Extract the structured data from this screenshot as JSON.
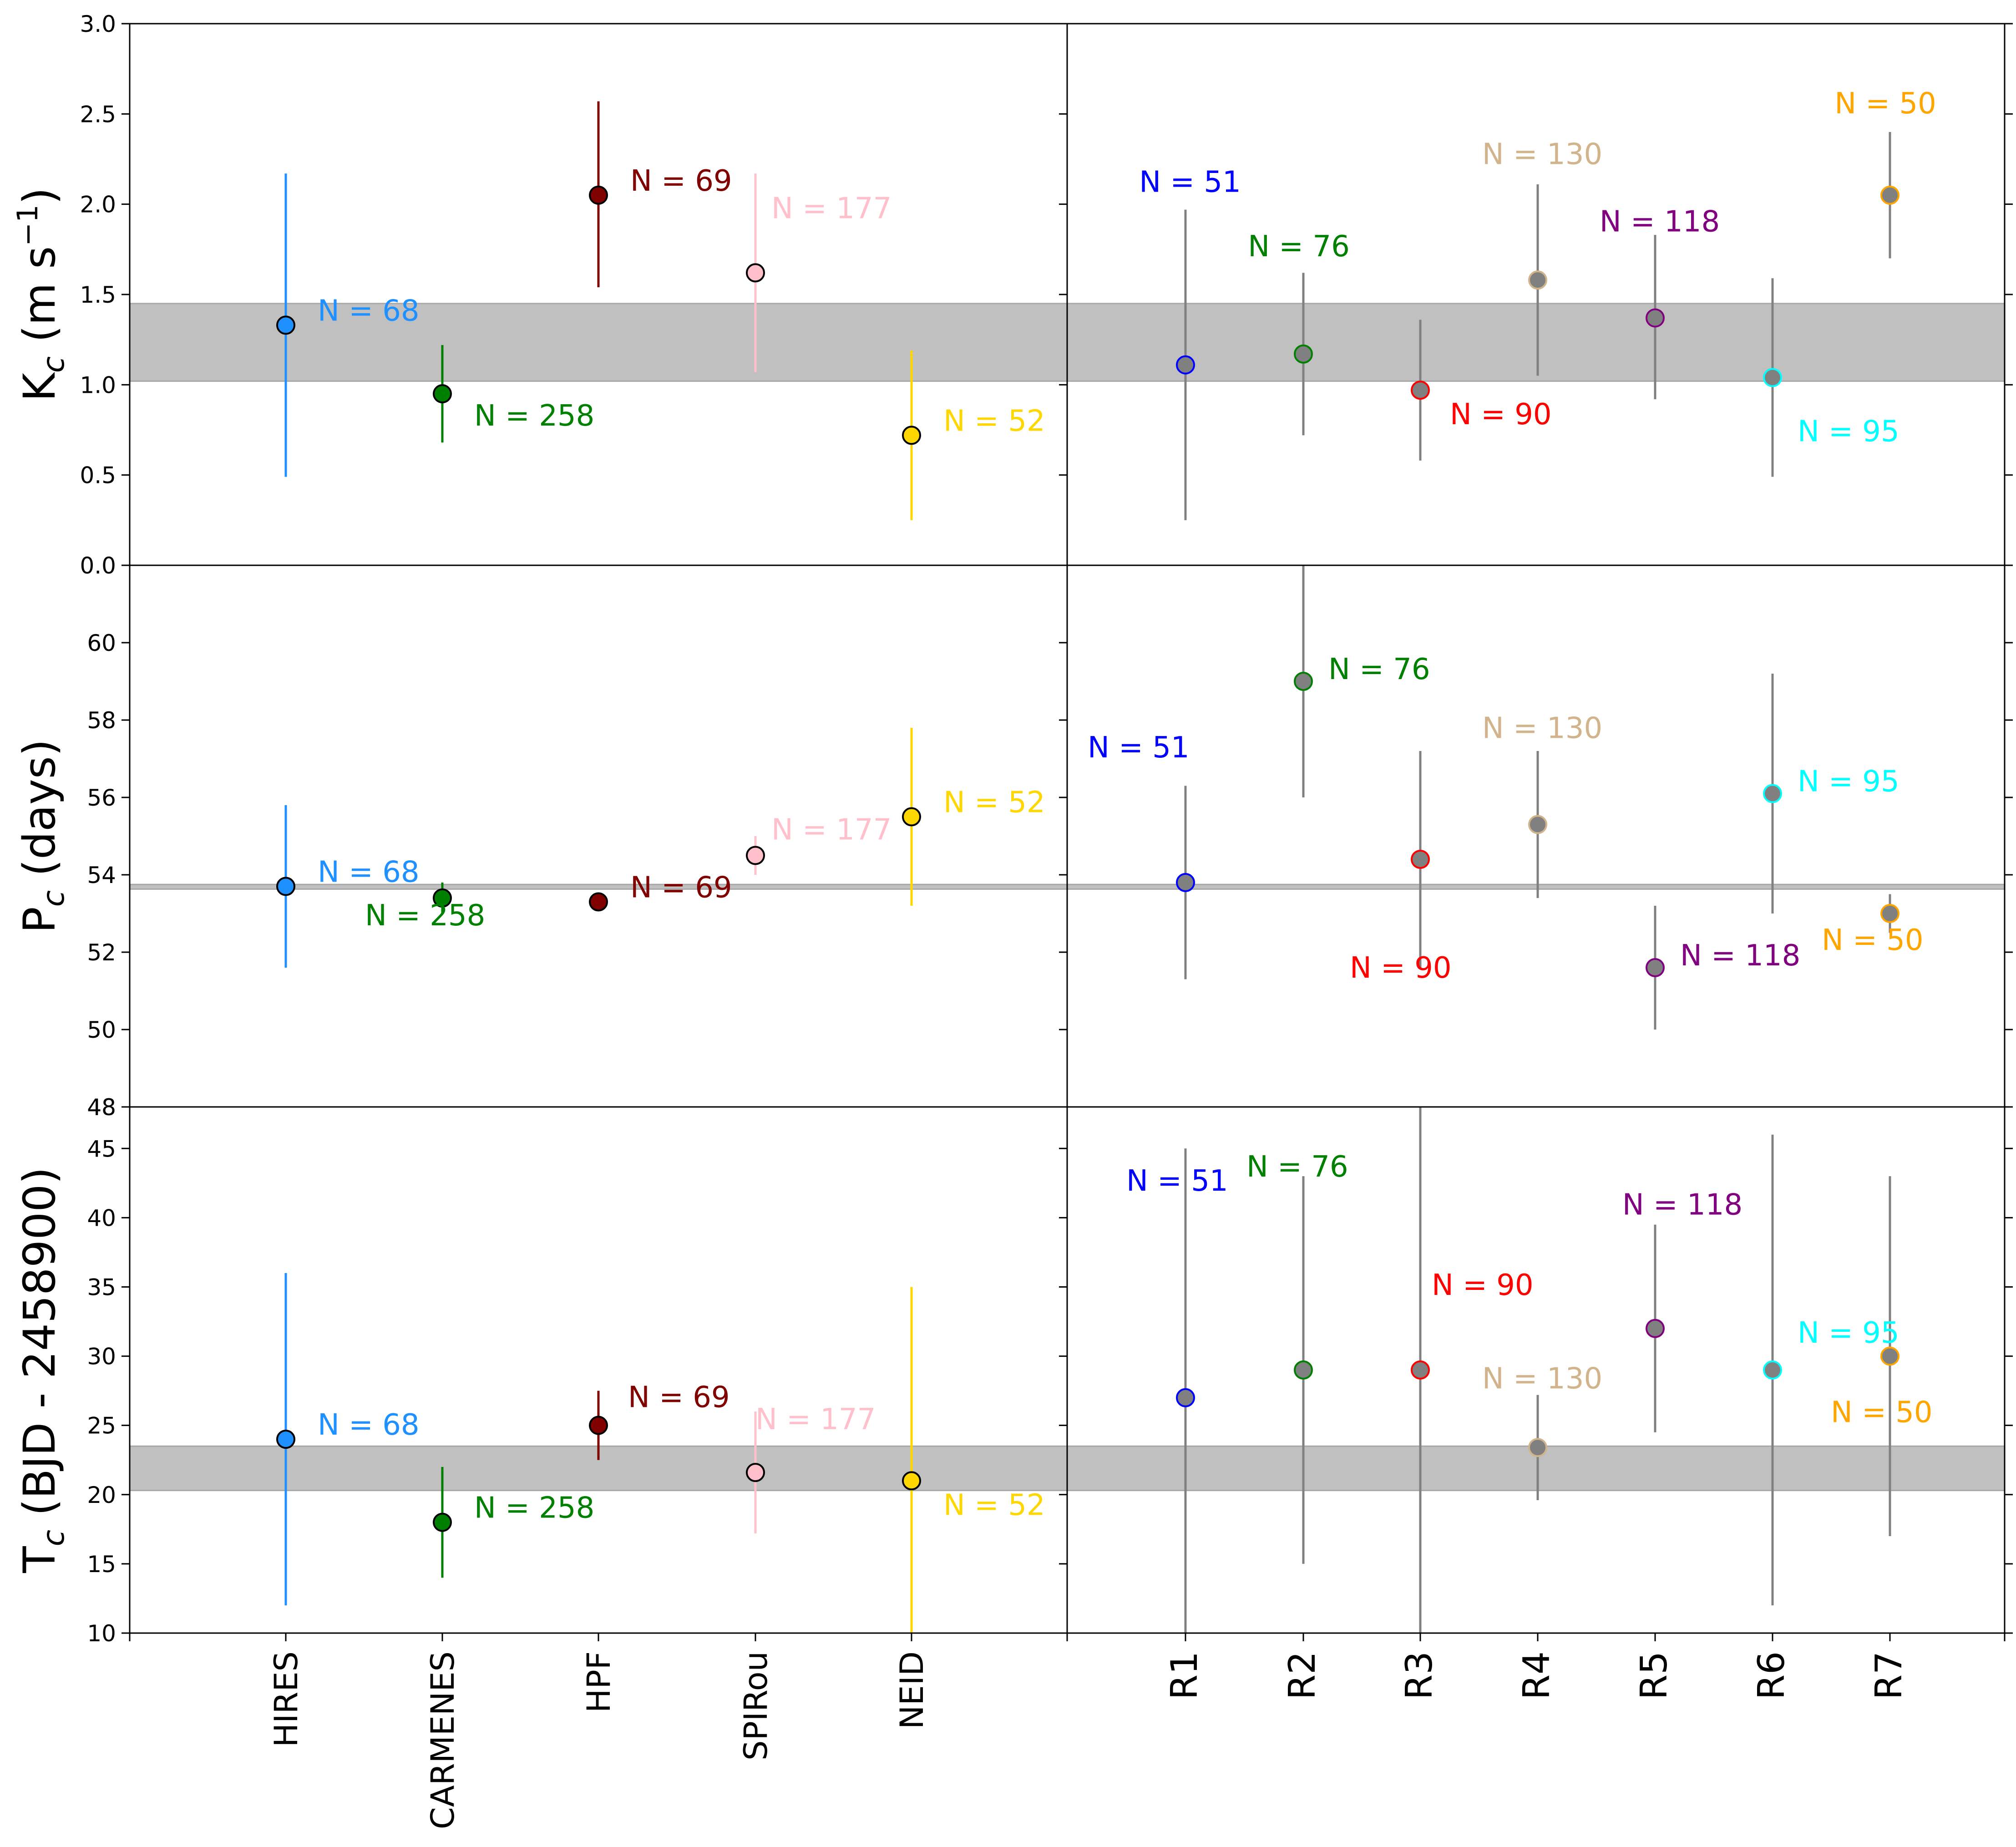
{
  "colors": {
    "HIRES": "#1e90ff",
    "CARMENES": "#008000",
    "HPF": "#800000",
    "SPIRou": "#ffc0cb",
    "NEID": "#ffd700",
    "R1": "#0000ff",
    "R2": "#008000",
    "R3": "#ff0000",
    "R4": "#d2b48c",
    "R5": "#800080",
    "R6": "#00ffff",
    "R7": "#ffa500",
    "r_fill": "#808080",
    "band": "#c0c0c0"
  },
  "chart_data": [
    {
      "type": "scatter",
      "panel": "K-instruments",
      "ylabel": "K_c (m s^-1)",
      "ylim": [
        0,
        3.0
      ],
      "yticks": [
        "0.0",
        "0.5",
        "1.0",
        "1.5",
        "2.0",
        "2.5",
        "3.0"
      ],
      "band": [
        1.02,
        1.45
      ],
      "categories": [
        "HIRES",
        "CARMENES",
        "HPF",
        "SPIRou",
        "NEID"
      ],
      "points": [
        {
          "cat": "HIRES",
          "y": 1.33,
          "lo": 0.49,
          "hi": 2.17,
          "n": "N = 68"
        },
        {
          "cat": "CARMENES",
          "y": 0.95,
          "lo": 0.68,
          "hi": 1.22,
          "n": "N = 258"
        },
        {
          "cat": "HPF",
          "y": 2.05,
          "lo": 1.54,
          "hi": 2.57,
          "n": "N = 69"
        },
        {
          "cat": "SPIRou",
          "y": 1.62,
          "lo": 1.07,
          "hi": 2.17,
          "n": "N = 177"
        },
        {
          "cat": "NEID",
          "y": 0.72,
          "lo": 0.25,
          "hi": 1.19,
          "n": "N = 52"
        }
      ]
    },
    {
      "type": "scatter",
      "panel": "K-subsets",
      "ylim": [
        0,
        3.0
      ],
      "band": [
        1.02,
        1.45
      ],
      "categories": [
        "R1",
        "R2",
        "R3",
        "R4",
        "R5",
        "R6",
        "R7"
      ],
      "points": [
        {
          "cat": "R1",
          "y": 1.11,
          "lo": 0.25,
          "hi": 1.97,
          "n": "N = 51"
        },
        {
          "cat": "R2",
          "y": 1.17,
          "lo": 0.72,
          "hi": 1.62,
          "n": "N = 76"
        },
        {
          "cat": "R3",
          "y": 0.97,
          "lo": 0.58,
          "hi": 1.36,
          "n": "N = 90"
        },
        {
          "cat": "R4",
          "y": 1.58,
          "lo": 1.05,
          "hi": 2.11,
          "n": "N = 130"
        },
        {
          "cat": "R5",
          "y": 1.37,
          "lo": 0.92,
          "hi": 1.83,
          "n": "N = 118"
        },
        {
          "cat": "R6",
          "y": 1.04,
          "lo": 0.49,
          "hi": 1.59,
          "n": "N = 95"
        },
        {
          "cat": "R7",
          "y": 2.05,
          "lo": 1.7,
          "hi": 2.4,
          "n": "N = 50"
        }
      ]
    },
    {
      "type": "scatter",
      "panel": "P-instruments",
      "ylabel": "P_c (days)",
      "ylim": [
        48,
        62
      ],
      "yticks": [
        "48",
        "50",
        "52",
        "54",
        "56",
        "58",
        "60"
      ],
      "band": [
        53.63,
        53.75
      ],
      "categories": [
        "HIRES",
        "CARMENES",
        "HPF",
        "SPIRou",
        "NEID"
      ],
      "points": [
        {
          "cat": "HIRES",
          "y": 53.7,
          "lo": 51.6,
          "hi": 55.8,
          "n": "N = 68"
        },
        {
          "cat": "CARMENES",
          "y": 53.4,
          "lo": 53.0,
          "hi": 53.8,
          "n": "N = 258"
        },
        {
          "cat": "HPF",
          "y": 53.3,
          "lo": 53.1,
          "hi": 53.5,
          "n": "N = 69"
        },
        {
          "cat": "SPIRou",
          "y": 54.5,
          "lo": 54.0,
          "hi": 55.0,
          "n": "N = 177"
        },
        {
          "cat": "NEID",
          "y": 55.5,
          "lo": 53.2,
          "hi": 57.8,
          "n": "N = 52"
        }
      ]
    },
    {
      "type": "scatter",
      "panel": "P-subsets",
      "ylim": [
        48,
        62
      ],
      "band": [
        53.63,
        53.75
      ],
      "categories": [
        "R1",
        "R2",
        "R3",
        "R4",
        "R5",
        "R6",
        "R7"
      ],
      "points": [
        {
          "cat": "R1",
          "y": 53.8,
          "lo": 51.3,
          "hi": 56.3,
          "n": "N = 51"
        },
        {
          "cat": "R2",
          "y": 59.0,
          "lo": 56.0,
          "hi": 62.0,
          "n": "N = 76"
        },
        {
          "cat": "R3",
          "y": 54.4,
          "lo": 51.6,
          "hi": 57.2,
          "n": "N = 90"
        },
        {
          "cat": "R4",
          "y": 55.3,
          "lo": 53.4,
          "hi": 57.2,
          "n": "N = 130"
        },
        {
          "cat": "R5",
          "y": 51.6,
          "lo": 50.0,
          "hi": 53.2,
          "n": "N = 118"
        },
        {
          "cat": "R6",
          "y": 56.1,
          "lo": 53.0,
          "hi": 59.2,
          "n": "N = 95"
        },
        {
          "cat": "R7",
          "y": 53.0,
          "lo": 52.5,
          "hi": 53.5,
          "n": "N = 50"
        }
      ]
    },
    {
      "type": "scatter",
      "panel": "T-instruments",
      "ylabel": "T_c (BJD - 2458900)",
      "ylim": [
        10,
        48
      ],
      "yticks": [
        "10",
        "15",
        "20",
        "25",
        "30",
        "35",
        "40",
        "45",
        "48"
      ],
      "band": [
        20.3,
        23.5
      ],
      "categories": [
        "HIRES",
        "CARMENES",
        "HPF",
        "SPIRou",
        "NEID"
      ],
      "points": [
        {
          "cat": "HIRES",
          "y": 24.0,
          "lo": 12.0,
          "hi": 36.0,
          "n": "N = 68"
        },
        {
          "cat": "CARMENES",
          "y": 18.0,
          "lo": 14.0,
          "hi": 22.0,
          "n": "N = 258"
        },
        {
          "cat": "HPF",
          "y": 25.0,
          "lo": 22.5,
          "hi": 27.5,
          "n": "N = 69"
        },
        {
          "cat": "SPIRou",
          "y": 21.6,
          "lo": 17.2,
          "hi": 26.0,
          "n": "N = 177"
        },
        {
          "cat": "NEID",
          "y": 21.0,
          "lo": 7.0,
          "hi": 35.0,
          "n": "N = 52"
        }
      ]
    },
    {
      "type": "scatter",
      "panel": "T-subsets",
      "ylim": [
        10,
        48
      ],
      "band": [
        20.3,
        23.5
      ],
      "categories": [
        "R1",
        "R2",
        "R3",
        "R4",
        "R5",
        "R6",
        "R7"
      ],
      "points": [
        {
          "cat": "R1",
          "y": 27.0,
          "lo": 9.0,
          "hi": 45.0,
          "n": "N = 51"
        },
        {
          "cat": "R2",
          "y": 29.0,
          "lo": 15.0,
          "hi": 43.0,
          "n": "N = 76"
        },
        {
          "cat": "R3",
          "y": 29.0,
          "lo": 10.0,
          "hi": 48.0,
          "n": "N = 90"
        },
        {
          "cat": "R4",
          "y": 23.4,
          "lo": 19.6,
          "hi": 27.2,
          "n": "N = 130"
        },
        {
          "cat": "R5",
          "y": 32.0,
          "lo": 24.5,
          "hi": 39.5,
          "n": "N = 118"
        },
        {
          "cat": "R6",
          "y": 29.0,
          "lo": 12.0,
          "hi": 46.0,
          "n": "N = 95"
        },
        {
          "cat": "R7",
          "y": 30.0,
          "lo": 17.0,
          "hi": 43.0,
          "n": "N = 50"
        }
      ]
    }
  ]
}
